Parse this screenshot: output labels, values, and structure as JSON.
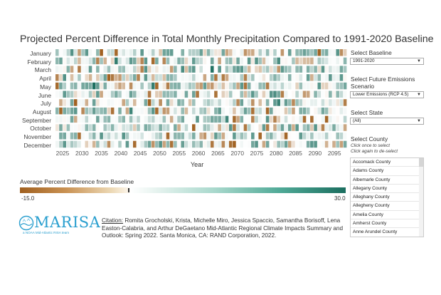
{
  "title": "Projected Percent Difference in Total Monthly Precipitation Compared to 1991-2020 Baseline",
  "months": [
    "January",
    "February",
    "March",
    "April",
    "May",
    "June",
    "July",
    "August",
    "September",
    "October",
    "November",
    "December"
  ],
  "x_axis": {
    "label": "Year",
    "ticks": [
      "2025",
      "2030",
      "2035",
      "2040",
      "2045",
      "2050",
      "2055",
      "2060",
      "2065",
      "2070",
      "2075",
      "2080",
      "2085",
      "2090",
      "2095"
    ]
  },
  "chart_data": {
    "type": "heatmap",
    "title": "Projected Percent Difference in Total Monthly Precipitation Compared to 1991-2020 Baseline",
    "xlabel": "Year",
    "ylabel": "",
    "x_range": [
      2021,
      2099
    ],
    "y_categories": [
      "January",
      "February",
      "March",
      "April",
      "May",
      "June",
      "July",
      "August",
      "September",
      "October",
      "November",
      "December"
    ],
    "color_range": [
      -15.0,
      30.0
    ],
    "colors": {
      "low": "#a0601f",
      "mid": "#ffffff",
      "high": "#1b6e5f"
    },
    "note": "Cell values estimated from color; approx. -15.0 to 30.0"
  },
  "legend": {
    "title": "Average Percent Difference from Baseline",
    "min_label": "-15.0",
    "max_label": "30.0"
  },
  "logo": {
    "word": "MARISA",
    "tagline": "a NOAA Mid-Atlantic RISA team"
  },
  "citation": {
    "label": "Citation:",
    "text": " Romita Grocholski, Krista, Michelle Miro, Jessica Spaccio, Samantha Borisoff, Lena Easton-Calabria, and Arthur DeGaetano Mid-Atlantic Regional Climate Impacts Summary and Outlook: Spring 2022. Santa Monica, CA: RAND Corporation, 2022."
  },
  "controls": {
    "baseline": {
      "label": "Select Baseline",
      "value": "1991-2020"
    },
    "emissions": {
      "label_line1": "Select Future Emissions",
      "label_line2": "Scenario",
      "value": "Lower Emissions (RCP 4.5)"
    },
    "state": {
      "label": "Select State",
      "value": "(All)"
    },
    "county": {
      "label": "Select County",
      "note_line1": "Click once to select",
      "note_line2": "Click again to de-select",
      "items": [
        "Accomack County",
        "Adams County",
        "Albemarle County",
        "Allegany County",
        "Alleghany County",
        "Allegheny County",
        "Amelia County",
        "Amherst County",
        "Anne Arundel County"
      ]
    }
  }
}
